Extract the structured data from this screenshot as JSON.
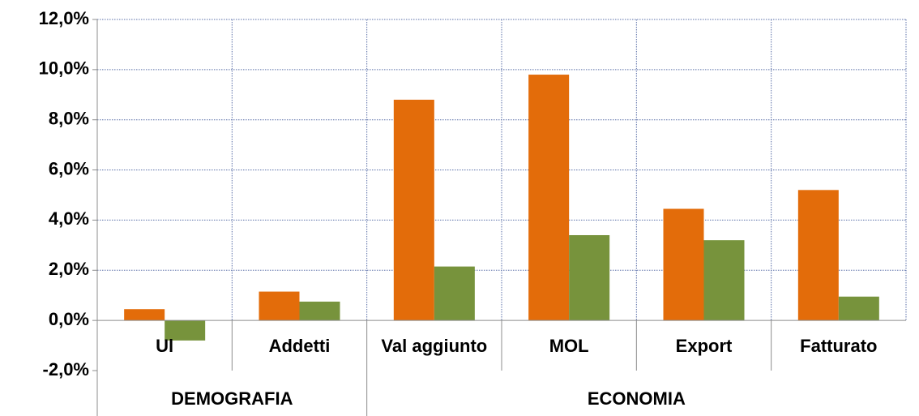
{
  "chart_data": {
    "type": "bar",
    "categories": [
      "Ul",
      "Addetti",
      "Val aggiunto",
      "MOL",
      "Export",
      "Fatturato"
    ],
    "groups": [
      {
        "label": "DEMOGRAFIA",
        "count": 2
      },
      {
        "label": "ECONOMIA",
        "count": 4
      }
    ],
    "series": [
      {
        "color": "#e36c0a",
        "values": [
          0.45,
          1.15,
          8.8,
          9.8,
          4.45,
          5.2
        ]
      },
      {
        "color": "#77933c",
        "values": [
          -0.8,
          0.75,
          2.15,
          3.4,
          3.2,
          0.95
        ]
      }
    ],
    "ylim": [
      -2,
      12
    ],
    "yticks": [
      {
        "value": -2,
        "label": "-2,0%"
      },
      {
        "value": 0,
        "label": "0,0%"
      },
      {
        "value": 2,
        "label": "2,0%"
      },
      {
        "value": 4,
        "label": "4,0%"
      },
      {
        "value": 6,
        "label": "6,0%"
      },
      {
        "value": 8,
        "label": "8,0%"
      },
      {
        "value": 10,
        "label": "10,0%"
      },
      {
        "value": 12,
        "label": "12,0%"
      }
    ],
    "grid": true
  }
}
